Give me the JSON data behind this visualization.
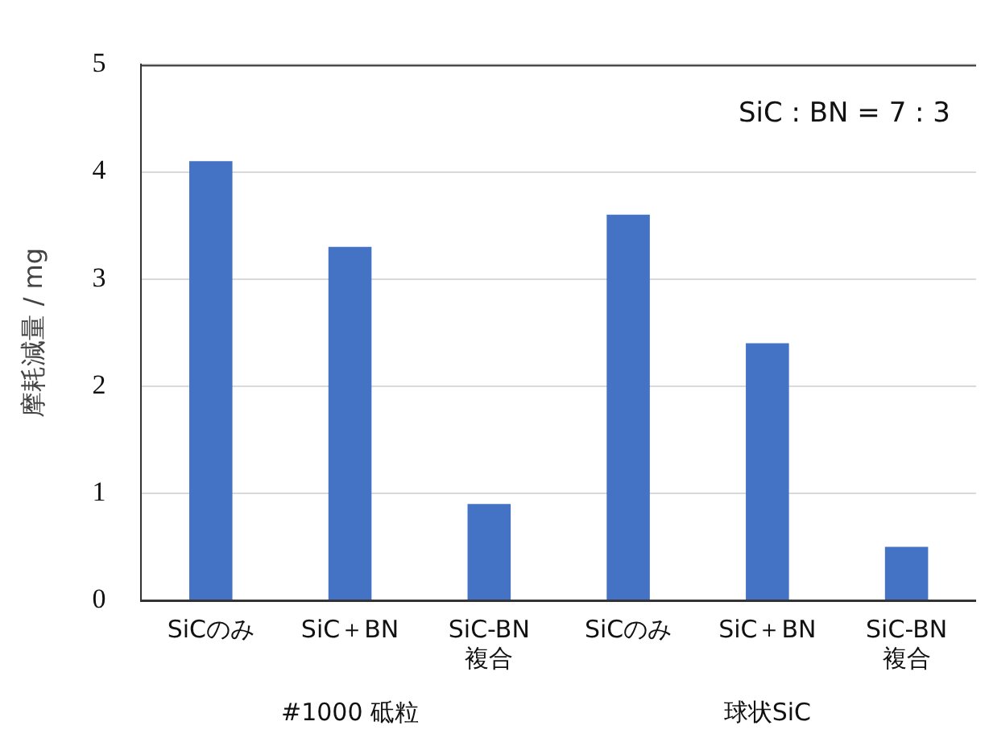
{
  "chart_data": {
    "type": "bar",
    "ylabel": "摩耗減量 / mg",
    "categories": [
      "SiCのみ",
      "SiC＋BN",
      "SiC-BN\n複合",
      "SiCのみ",
      "SiC＋BN",
      "SiC-BN\n複合"
    ],
    "values": [
      4.1,
      3.3,
      0.9,
      3.6,
      2.4,
      0.5
    ],
    "color": "#4472c4",
    "ylim": [
      0,
      5
    ],
    "yticks": [
      0,
      1,
      2,
      3,
      4,
      5
    ],
    "grid": "y",
    "legend": false,
    "annotations": [
      "SiC : BN = 7 : 3",
      "#1000 砥粒",
      "球状SiC"
    ]
  }
}
